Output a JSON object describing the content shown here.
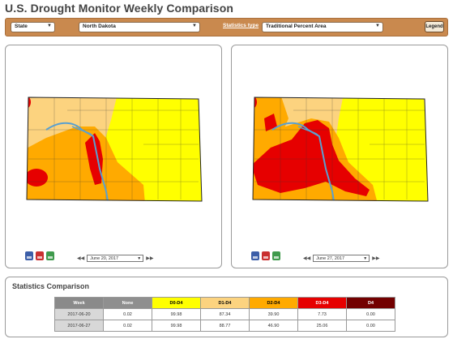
{
  "app": {
    "title": "U.S. Drought Monitor Weekly Comparison"
  },
  "toolbar": {
    "area_type": "State",
    "area_name": "North Dakota",
    "statistics_type_label": "Statistics type",
    "statistics_type": "Traditional Percent Area",
    "legend_button": "Legend"
  },
  "left_panel": {
    "date": "June 20, 2017"
  },
  "right_panel": {
    "date": "June 27, 2017"
  },
  "stats": {
    "title": "Statistics Comparison",
    "columns": [
      "Week",
      "None",
      "D0-D4",
      "D1-D4",
      "D2-D4",
      "D3-D4",
      "D4"
    ],
    "column_colors": [
      "#8a8a8a",
      "#8f8f8f",
      "#ffff00",
      "#fcd37f",
      "#ffaa00",
      "#e60000",
      "#730000"
    ],
    "rows": [
      [
        "2017-06-20",
        "0.02",
        "99.98",
        "87.34",
        "39.90",
        "7.73",
        "0.00"
      ],
      [
        "2017-06-27",
        "0.02",
        "99.98",
        "88.77",
        "46.90",
        "25.06",
        "0.00"
      ]
    ]
  },
  "icons": {
    "download": [
      "pdf-icon",
      "image-icon",
      "gis-icon"
    ]
  },
  "colors": {
    "toolbar": "#c9894e",
    "d0": "#ffff00",
    "d1": "#fcd37f",
    "d2": "#ffaa00",
    "d3": "#e60000",
    "d4": "#730000"
  }
}
